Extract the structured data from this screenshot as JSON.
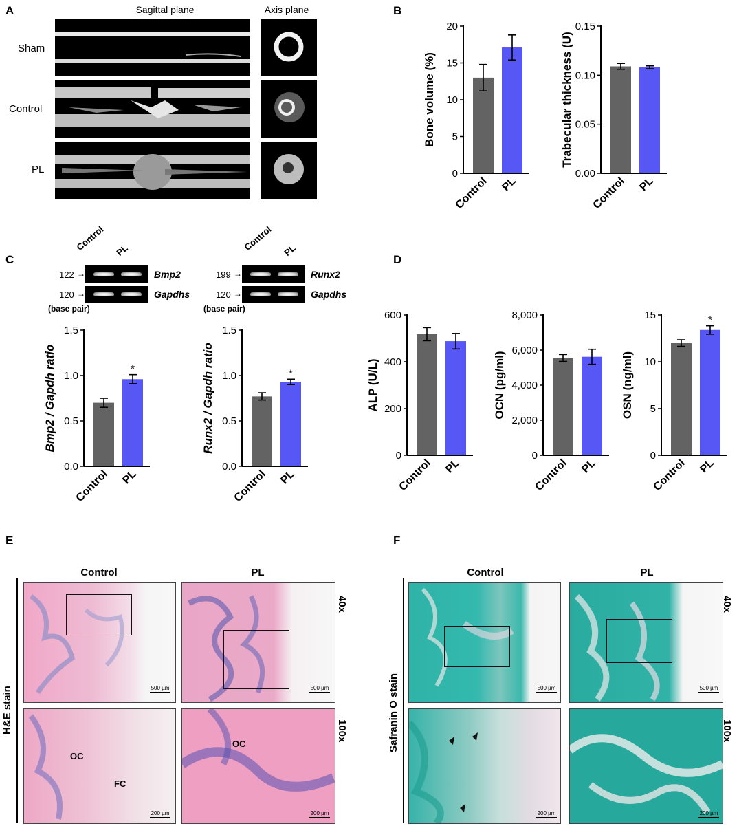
{
  "panels": {
    "A": {
      "label": "A",
      "sagittal_header": "Sagittal plane",
      "axis_header": "Axis plane",
      "rows": [
        "Sham",
        "Control",
        "PL"
      ]
    },
    "B": {
      "label": "B"
    },
    "C": {
      "label": "C",
      "gel_left": {
        "lanes": [
          "Control",
          "PL"
        ],
        "bp_top": "122",
        "bp_bottom": "120",
        "gene_top": "Bmp2",
        "gene_bottom": "Gapdhs",
        "bp_note": "(base pair)"
      },
      "gel_right": {
        "lanes": [
          "Control",
          "PL"
        ],
        "bp_top": "199",
        "bp_bottom": "120",
        "gene_top": "Runx2",
        "gene_bottom": "Gapdhs",
        "bp_note": "(base pair)"
      }
    },
    "D": {
      "label": "D"
    },
    "E": {
      "label": "E",
      "col_headers": [
        "Control",
        "PL"
      ],
      "side_label": "H&E stain",
      "mags": [
        "40x",
        "100x"
      ],
      "scale_top": "500 µm",
      "scale_bottom": "200 µm",
      "annot": [
        "OC",
        "FC",
        "OC"
      ]
    },
    "F": {
      "label": "F",
      "col_headers": [
        "Control",
        "PL"
      ],
      "side_label": "Safranin O stain",
      "mags": [
        "40x",
        "100x"
      ],
      "scale_top": "500 µm",
      "scale_bottom": "200 µm"
    }
  },
  "colors": {
    "control": "#636363",
    "pl": "#5757f5"
  },
  "chart_data": [
    {
      "id": "B1",
      "type": "bar",
      "categories": [
        "Control",
        "PL"
      ],
      "values": [
        13.0,
        17.1
      ],
      "errors": [
        1.8,
        1.7
      ],
      "ylabel": "Bone volume (%)",
      "ylim": [
        0,
        20
      ],
      "ticks": [
        0,
        5,
        10,
        15,
        20
      ],
      "tick_labels": [
        "0",
        "5",
        "10",
        "15",
        "20"
      ],
      "stars": [
        "",
        ""
      ]
    },
    {
      "id": "B2",
      "type": "bar",
      "categories": [
        "Control",
        "PL"
      ],
      "values": [
        0.109,
        0.108
      ],
      "errors": [
        0.003,
        0.0015
      ],
      "ylabel": "Trabecular thickness (U)",
      "ylim": [
        0,
        0.15
      ],
      "ticks": [
        0,
        0.05,
        0.1,
        0.15
      ],
      "tick_labels": [
        "0.00",
        "0.05",
        "0.10",
        "0.15"
      ],
      "stars": [
        "",
        ""
      ]
    },
    {
      "id": "C1",
      "type": "bar",
      "categories": [
        "Control",
        "PL"
      ],
      "values": [
        0.7,
        0.96
      ],
      "errors": [
        0.05,
        0.05
      ],
      "ylabel": "Bmp2 / Gapdh ratio",
      "ylim": [
        0,
        1.5
      ],
      "ticks": [
        0,
        0.5,
        1.0,
        1.5
      ],
      "tick_labels": [
        "0.0",
        "0.5",
        "1.0",
        "1.5"
      ],
      "stars": [
        "",
        "*"
      ]
    },
    {
      "id": "C2",
      "type": "bar",
      "categories": [
        "Control",
        "PL"
      ],
      "values": [
        0.77,
        0.93
      ],
      "errors": [
        0.04,
        0.03
      ],
      "ylabel": "Runx2 / Gapdh ratio",
      "ylim": [
        0,
        1.5
      ],
      "ticks": [
        0,
        0.5,
        1.0,
        1.5
      ],
      "tick_labels": [
        "0.0",
        "0.5",
        "1.0",
        "1.5"
      ],
      "stars": [
        "",
        "*"
      ]
    },
    {
      "id": "D1",
      "type": "bar",
      "categories": [
        "Control",
        "PL"
      ],
      "values": [
        518,
        488
      ],
      "errors": [
        28,
        33
      ],
      "ylabel": "ALP (U/L)",
      "ylim": [
        0,
        600
      ],
      "ticks": [
        0,
        200,
        400,
        600
      ],
      "tick_labels": [
        "0",
        "200",
        "400",
        "600"
      ],
      "stars": [
        "",
        ""
      ]
    },
    {
      "id": "D2",
      "type": "bar",
      "categories": [
        "Control",
        "PL"
      ],
      "values": [
        5550,
        5620
      ],
      "errors": [
        200,
        430
      ],
      "ylabel": "OCN (pg/ml)",
      "ylim": [
        0,
        8000
      ],
      "ticks": [
        0,
        2000,
        4000,
        6000,
        8000
      ],
      "tick_labels": [
        "0",
        "2,000",
        "4,000",
        "6,000",
        "8,000"
      ],
      "stars": [
        "",
        ""
      ]
    },
    {
      "id": "D3",
      "type": "bar",
      "categories": [
        "Control",
        "PL"
      ],
      "values": [
        12.0,
        13.4
      ],
      "errors": [
        0.35,
        0.45
      ],
      "ylabel": "OSN (ng/ml)",
      "ylim": [
        0,
        15
      ],
      "ticks": [
        0,
        5,
        10,
        15
      ],
      "tick_labels": [
        "0",
        "5",
        "10",
        "15"
      ],
      "stars": [
        "",
        "*"
      ]
    }
  ]
}
